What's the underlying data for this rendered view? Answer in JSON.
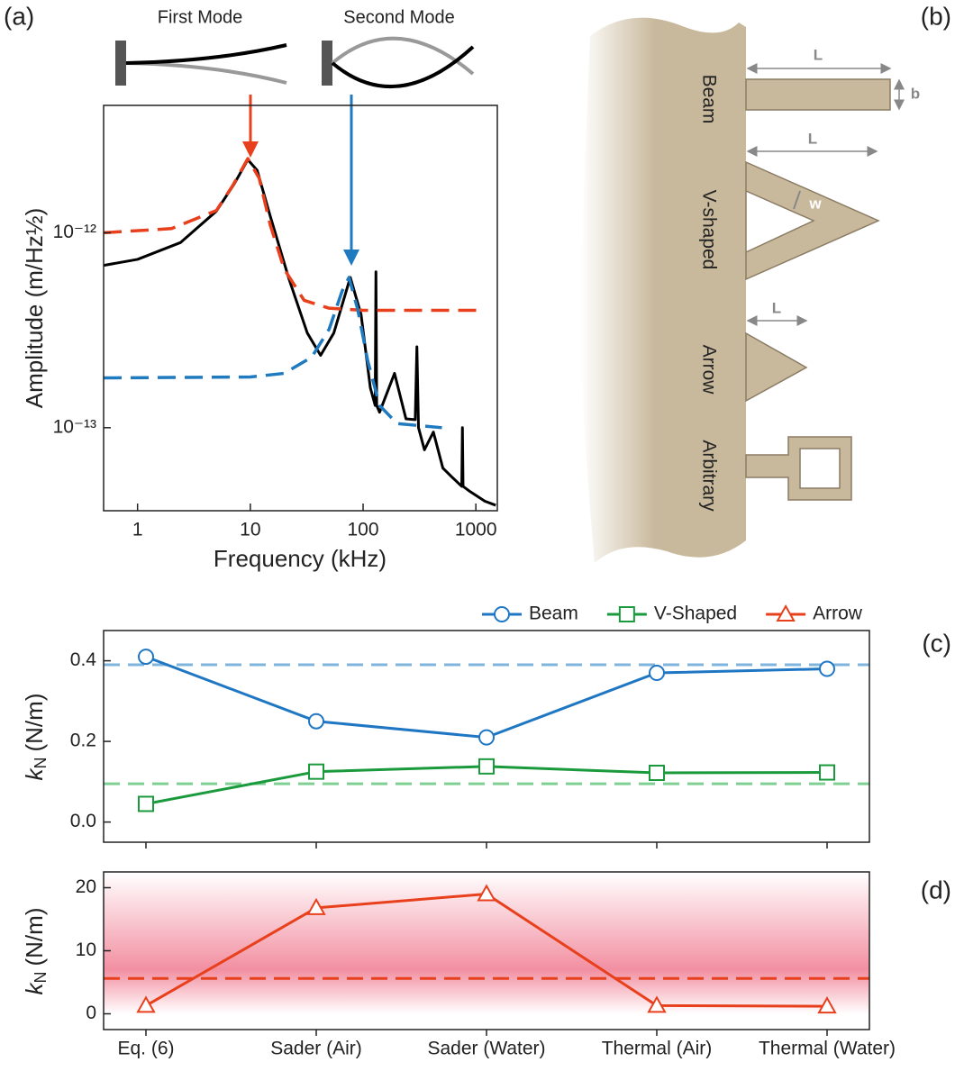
{
  "chart_data": [
    {
      "type": "line",
      "panel": "(a)",
      "annotations": [
        "First Mode",
        "Second Mode"
      ],
      "xlabel": "Frequency (kHz)",
      "ylabel": "Amplitude (m/Hz½)",
      "xscale": "log",
      "yscale": "log",
      "xlim": [
        0.5,
        1550
      ],
      "ylim": [
        3.75e-14,
        4.5e-12
      ],
      "xticks": [
        1,
        10,
        100,
        1000
      ],
      "yticks": [
        {
          "value": 1e-13,
          "label": "10⁻¹³"
        },
        {
          "value": 1e-12,
          "label": "10⁻¹²"
        }
      ],
      "series": [
        {
          "color": "#000000",
          "style": "solid",
          "x": [
            0.5,
            1,
            2.4,
            5,
            7.2,
            9.5,
            11.5,
            15,
            22,
            32,
            42,
            55,
            77,
            96,
            116,
            128,
            130,
            132,
            140,
            190,
            240,
            290,
            300,
            310,
            350,
            420,
            510,
            610,
            750,
            760,
            770,
            890,
            1200,
            1500
          ],
          "values": [
            6.8e-13,
            7.3e-13,
            8.9e-13,
            1.29e-12,
            1.78e-12,
            2.37e-12,
            2.09e-12,
            1.22e-12,
            5.8e-13,
            3.06e-13,
            2.35e-13,
            3.06e-13,
            5.9e-13,
            3.8e-13,
            1.6e-13,
            1.3e-13,
            6.3e-13,
            1.3e-13,
            1.2e-13,
            1.9e-13,
            1.11e-13,
            1.1e-13,
            2.6e-13,
            1e-13,
            7.7e-14,
            9.5e-14,
            6.2e-14,
            5.6e-14,
            5e-14,
            1e-13,
            5e-14,
            4.7e-14,
            4.2e-14,
            4e-14
          ]
        },
        {
          "color": "#e8401c",
          "style": "dashed",
          "x": [
            0.5,
            2,
            5,
            7,
            9.5,
            12,
            15,
            20,
            30,
            50,
            100,
            1200
          ],
          "values": [
            1e-12,
            1.05e-12,
            1.3e-12,
            1.75e-12,
            2.4e-12,
            1.9e-12,
            1.1e-12,
            6.5e-13,
            4.5e-13,
            4.1e-13,
            4e-13,
            4e-13
          ]
        },
        {
          "color": "#1f7ac0",
          "style": "dashed",
          "x": [
            0.5,
            10,
            20,
            35,
            50,
            65,
            75,
            90,
            110,
            140,
            200,
            500
          ],
          "values": [
            1.8e-13,
            1.82e-13,
            1.9e-13,
            2.3e-13,
            3.2e-13,
            5e-13,
            5.9e-13,
            4e-13,
            2.2e-13,
            1.3e-13,
            1.05e-13,
            1e-13
          ]
        }
      ]
    },
    {
      "type": "line",
      "panel": "(c)",
      "ylabel": {
        "symbol": "k",
        "subscript": "N",
        "unit": "(N/m)"
      },
      "ylim": [
        -0.05,
        0.475
      ],
      "yticks": [
        {
          "value": 0.0,
          "label": "0.0"
        },
        0.2,
        0.4
      ],
      "legend": "above",
      "series": [
        {
          "name": "Beam",
          "color": "#1f77c4",
          "marker": "circle",
          "values": [
            0.41,
            0.25,
            0.21,
            0.37,
            0.38
          ]
        },
        {
          "name": "V-Shaped",
          "color": "#1a9a3c",
          "marker": "square",
          "values": [
            0.045,
            0.125,
            0.138,
            0.122,
            0.123
          ]
        }
      ],
      "reference_lines": [
        {
          "value": 0.39,
          "color": "#7fb4dd"
        },
        {
          "value": 0.095,
          "color": "#7fcf93"
        }
      ]
    },
    {
      "type": "line",
      "panel": "(d)",
      "ylabel": {
        "symbol": "k",
        "subscript": "N",
        "unit": "(N/m)"
      },
      "categories": [
        "Eq. (6)",
        "Sader (Air)",
        "Sader (Water)",
        "Thermal (Air)",
        "Thermal (Water)"
      ],
      "ylim": [
        -2.5,
        22.5
      ],
      "yticks": [
        0,
        10,
        20
      ],
      "series": [
        {
          "name": "Arrow",
          "color": "#e8401c",
          "marker": "triangle",
          "values": [
            1.3,
            16.8,
            19,
            1.3,
            1.2
          ]
        }
      ],
      "reference_lines": [
        {
          "value": 5.6,
          "color": "#e8401c"
        }
      ],
      "band": {
        "from": 0,
        "to": 22.5,
        "peak": 7,
        "color": "#ee6a82"
      }
    }
  ],
  "diagram": {
    "panel": "(b)",
    "shapes": [
      "Beam",
      "V-shaped",
      "Arrow",
      "Arbitrary"
    ],
    "dimensions": [
      "L",
      "b",
      "L",
      "w",
      "L"
    ]
  }
}
